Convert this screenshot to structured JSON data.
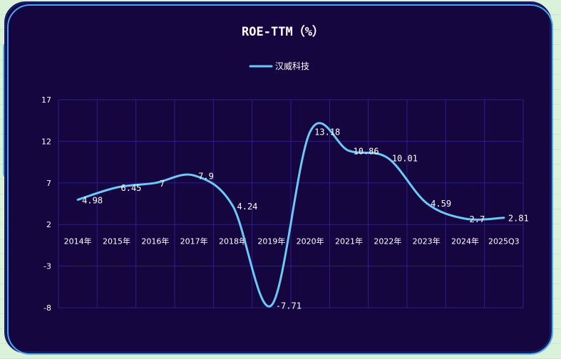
{
  "chart_data": {
    "type": "line",
    "title": "ROE-TTM（%）",
    "categories": [
      "2014年",
      "2015年",
      "2016年",
      "2017年",
      "2018年",
      "2019年",
      "2020年",
      "2021年",
      "2022年",
      "2023年",
      "2024年",
      "2025Q3"
    ],
    "series": [
      {
        "name": "汉威科技",
        "values": [
          4.98,
          6.45,
          7,
          7.9,
          4.24,
          -7.71,
          13.18,
          10.86,
          10.01,
          4.59,
          2.7,
          2.81
        ]
      }
    ],
    "y_ticks": [
      "17",
      "12",
      "7",
      "2",
      "-3",
      "-8"
    ],
    "ylim": [
      -8,
      17
    ],
    "grid": true,
    "legend_position": "top-center",
    "colors": {
      "line": "#6ec8f5",
      "background": "#15063f",
      "grid": "#2a1f8a",
      "text": "#ffffff"
    }
  }
}
